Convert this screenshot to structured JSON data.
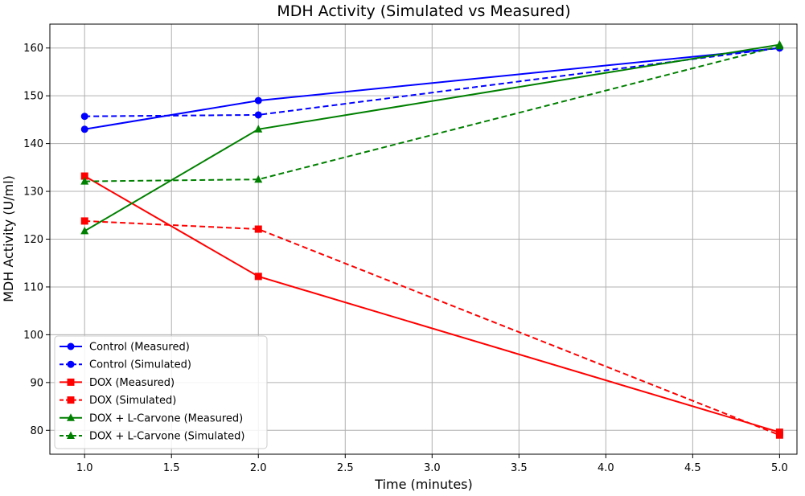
{
  "chart_data": {
    "type": "line",
    "title": "MDH Activity (Simulated vs Measured)",
    "xlabel": "Time (minutes)",
    "ylabel": "MDH Activity (U/ml)",
    "xlim": [
      0.8,
      5.1
    ],
    "ylim": [
      75,
      165
    ],
    "xticks": [
      1.0,
      1.5,
      2.0,
      2.5,
      3.0,
      3.5,
      4.0,
      4.5,
      5.0
    ],
    "xtick_labels": [
      "1.0",
      "1.5",
      "2.0",
      "2.5",
      "3.0",
      "3.5",
      "4.0",
      "4.5",
      "5.0"
    ],
    "yticks": [
      80,
      90,
      100,
      110,
      120,
      130,
      140,
      150,
      160
    ],
    "ytick_labels": [
      "80",
      "90",
      "100",
      "110",
      "120",
      "130",
      "140",
      "150",
      "160"
    ],
    "grid": true,
    "legend_position": "lower-left",
    "x": [
      1.0,
      2.0,
      5.0
    ],
    "series": [
      {
        "name": "Control (Measured)",
        "values": [
          143.0,
          149.0,
          160.0
        ],
        "color": "#0000ff",
        "dash": "solid",
        "marker": "circle"
      },
      {
        "name": "Control (Simulated)",
        "values": [
          145.7,
          146.0,
          160.0
        ],
        "color": "#0000ff",
        "dash": "dashed",
        "marker": "circle"
      },
      {
        "name": "DOX (Measured)",
        "values": [
          133.2,
          112.2,
          79.6
        ],
        "color": "#ff0000",
        "dash": "solid",
        "marker": "square"
      },
      {
        "name": "DOX (Simulated)",
        "values": [
          123.8,
          122.1,
          79.0
        ],
        "color": "#ff0000",
        "dash": "dashed",
        "marker": "square"
      },
      {
        "name": "DOX + L-Carvone (Measured)",
        "values": [
          121.7,
          143.0,
          160.7
        ],
        "color": "#008000",
        "dash": "solid",
        "marker": "triangle"
      },
      {
        "name": "DOX + L-Carvone (Simulated)",
        "values": [
          132.1,
          132.5,
          160.4
        ],
        "color": "#008000",
        "dash": "dashed",
        "marker": "triangle"
      }
    ]
  }
}
